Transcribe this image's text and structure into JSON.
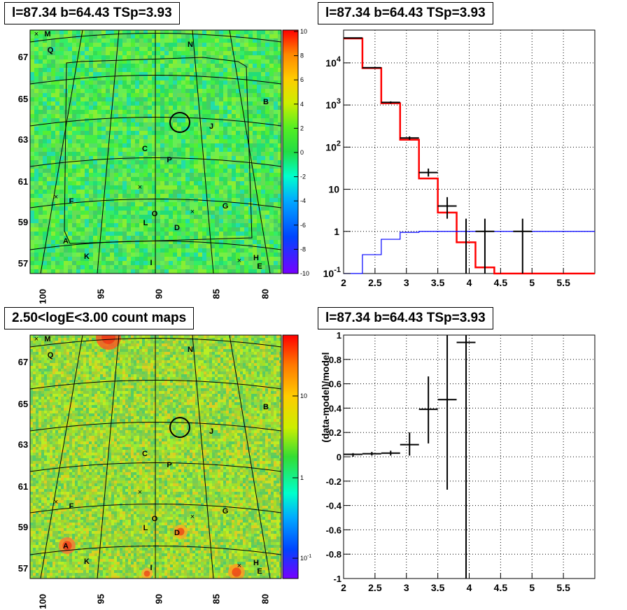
{
  "titles": {
    "top_left": "l=87.34 b=64.43 TSp=3.93",
    "top_right": "l=87.34 b=64.43 TSp=3.93",
    "bottom_left": "2.50<logE<3.00 count maps",
    "bottom_right": "l=87.34 b=64.43 TSp=3.93"
  },
  "chart_data": [
    {
      "id": "residual-map",
      "type": "heatmap",
      "title": "l=87.34 b=64.43 TSp=3.93",
      "x_ticks": [
        "100",
        "95",
        "90",
        "85",
        "80"
      ],
      "y_ticks": [
        "57",
        "59",
        "61",
        "63",
        "65",
        "67"
      ],
      "colorbar": {
        "ticks": [
          "10",
          "8",
          "6",
          "4",
          "2",
          "0",
          "-2",
          "-4",
          "-6",
          "-8",
          "-10"
        ],
        "range": [
          -10,
          10
        ],
        "scale": "linear"
      },
      "source_labels": [
        "M",
        "Q",
        "N",
        "B",
        "J",
        "C",
        "P",
        "F",
        "O",
        "G",
        "L",
        "D",
        "A",
        "K",
        "I",
        "H",
        "E"
      ],
      "source_circle": "l=87.34 b=64.43"
    },
    {
      "id": "spectrum",
      "type": "line",
      "title": "l=87.34 b=64.43 TSp=3.93",
      "x_ticks": [
        "2",
        "2.5",
        "3",
        "3.5",
        "4",
        "4.5",
        "5",
        "5.5"
      ],
      "y_ticks": [
        "10^-1",
        "1",
        "10",
        "10^2",
        "10^3",
        "10^4"
      ],
      "x_range": [
        2,
        6
      ],
      "y_range": [
        0.1,
        60000
      ],
      "y_scale": "log",
      "grid": true,
      "series": [
        {
          "color": "#ff0000",
          "bin_edges": [
            2.0,
            2.3,
            2.6,
            2.9,
            3.2,
            3.5,
            3.8,
            4.1,
            4.4,
            6.0
          ],
          "values": [
            38000,
            7500,
            1100,
            150,
            18,
            2.8,
            0.55,
            0.14,
            0.1
          ]
        },
        {
          "color": "#0000ff",
          "bin_edges": [
            2.0,
            2.3,
            2.6,
            2.9,
            3.2,
            3.5,
            3.8,
            4.1,
            4.4,
            6.0
          ],
          "values": [
            0.05,
            0.28,
            0.65,
            0.95,
            1.0,
            1.0,
            1.0,
            1.0,
            1.0
          ]
        },
        {
          "color": "#000000",
          "points": [
            {
              "x": 2.15,
              "y": 39000,
              "xerr": 0.15,
              "ylo": 38500,
              "yhi": 39500
            },
            {
              "x": 2.45,
              "y": 7700,
              "xerr": 0.15,
              "ylo": 7500,
              "yhi": 7900
            },
            {
              "x": 2.75,
              "y": 1150,
              "xerr": 0.15,
              "ylo": 1080,
              "yhi": 1220
            },
            {
              "x": 3.05,
              "y": 165,
              "xerr": 0.15,
              "ylo": 150,
              "yhi": 180
            },
            {
              "x": 3.35,
              "y": 25,
              "xerr": 0.15,
              "ylo": 20,
              "yhi": 31
            },
            {
              "x": 3.65,
              "y": 4,
              "xerr": 0.15,
              "ylo": 2,
              "yhi": 6.5
            },
            {
              "x": 3.95,
              "y": 1,
              "xerr": 0.0,
              "ylo": 0.1,
              "yhi": 2
            },
            {
              "x": 4.25,
              "y": 1,
              "xerr": 0.15,
              "ylo": 0.1,
              "yhi": 2
            },
            {
              "x": 4.85,
              "y": 1,
              "xerr": 0.15,
              "ylo": 0.1,
              "yhi": 2
            }
          ]
        }
      ]
    },
    {
      "id": "count-map",
      "type": "heatmap",
      "title": "2.50<logE<3.00 count maps",
      "x_ticks": [
        "100",
        "95",
        "90",
        "85",
        "80"
      ],
      "y_ticks": [
        "57",
        "59",
        "61",
        "63",
        "65",
        "67"
      ],
      "colorbar": {
        "ticks": [
          "10",
          "1",
          "10^-1"
        ],
        "scale": "log"
      },
      "source_labels": [
        "M",
        "Q",
        "N",
        "B",
        "J",
        "C",
        "P",
        "F",
        "O",
        "G",
        "L",
        "D",
        "A",
        "K",
        "I",
        "H",
        "E"
      ]
    },
    {
      "id": "residual-ratio",
      "type": "scatter",
      "title": "l=87.34 b=64.43 TSp=3.93",
      "ylabel": "(data-model)/model",
      "x_ticks": [
        "2",
        "2.5",
        "3",
        "3.5",
        "4",
        "4.5",
        "5",
        "5.5"
      ],
      "y_ticks": [
        "1",
        "0.8",
        "0.6",
        "0.4",
        "0.2",
        "0",
        "-0.2",
        "-0.4",
        "-0.6",
        "-0.8",
        "-1"
      ],
      "x_range": [
        2,
        6
      ],
      "y_range": [
        -1,
        1
      ],
      "grid": true,
      "points": [
        {
          "x": 2.15,
          "y": 0.02,
          "xerr": 0.15,
          "ylo": 0.0,
          "yhi": 0.03
        },
        {
          "x": 2.45,
          "y": 0.025,
          "xerr": 0.15,
          "ylo": 0.01,
          "yhi": 0.04
        },
        {
          "x": 2.75,
          "y": 0.03,
          "xerr": 0.15,
          "ylo": 0.01,
          "yhi": 0.05
        },
        {
          "x": 3.05,
          "y": 0.1,
          "xerr": 0.15,
          "ylo": 0.01,
          "yhi": 0.2
        },
        {
          "x": 3.35,
          "y": 0.39,
          "xerr": 0.15,
          "ylo": 0.11,
          "yhi": 0.66
        },
        {
          "x": 3.65,
          "y": 0.47,
          "xerr": 0.15,
          "ylo": -0.27,
          "yhi": 1.0
        },
        {
          "x": 3.95,
          "y": 0.94,
          "xerr": 0.15,
          "ylo": -1.0,
          "yhi": 1.0
        }
      ]
    }
  ]
}
